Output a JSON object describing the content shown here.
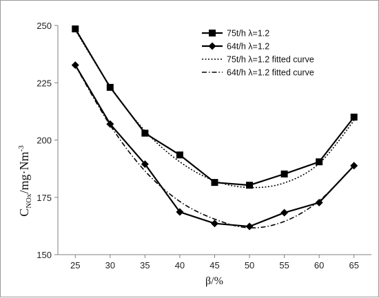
{
  "chart_data": {
    "type": "line",
    "xlabel": "β/%",
    "ylabel": {
      "main": "C",
      "sub": "NOx",
      "unit": "/mg·Nm",
      "sup": "-3"
    },
    "x": [
      25,
      30,
      35,
      40,
      45,
      50,
      55,
      60,
      65
    ],
    "xlim": [
      22.5,
      67.5
    ],
    "ylim": [
      150,
      250
    ],
    "xticks": [
      "25",
      "30",
      "35",
      "40",
      "45",
      "50",
      "55",
      "60",
      "65"
    ],
    "yticks": [
      "150",
      "175",
      "200",
      "225",
      "250"
    ],
    "grid": false,
    "legend_position": "top-right",
    "series": [
      {
        "name": "75t/h λ=1.2",
        "values": [
          248.5,
          223,
          203,
          193.5,
          181.5,
          180.3,
          185.2,
          190.5,
          210
        ],
        "marker": "square",
        "line": "solid",
        "color": "#000000"
      },
      {
        "name": "64t/h λ=1.2",
        "values": [
          232.7,
          207,
          189.5,
          168.6,
          163.6,
          162.3,
          168.3,
          172.7,
          188.8
        ],
        "marker": "diamond",
        "line": "solid",
        "color": "#000000"
      },
      {
        "name": "75t/h λ=1.2 fitted curve",
        "values": [
          248,
          223.5,
          204,
          190.5,
          182.2,
          179.3,
          181.3,
          189.8,
          208.5
        ],
        "marker": "none",
        "line": "dotted",
        "color": "#000000"
      },
      {
        "name": "64t/h λ=1.2 fitted curve",
        "values": [
          232.5,
          206.5,
          186.5,
          173.2,
          165.5,
          161.7,
          164.5,
          173.5,
          189
        ],
        "marker": "none",
        "line": "dashdot",
        "color": "#000000"
      }
    ]
  }
}
